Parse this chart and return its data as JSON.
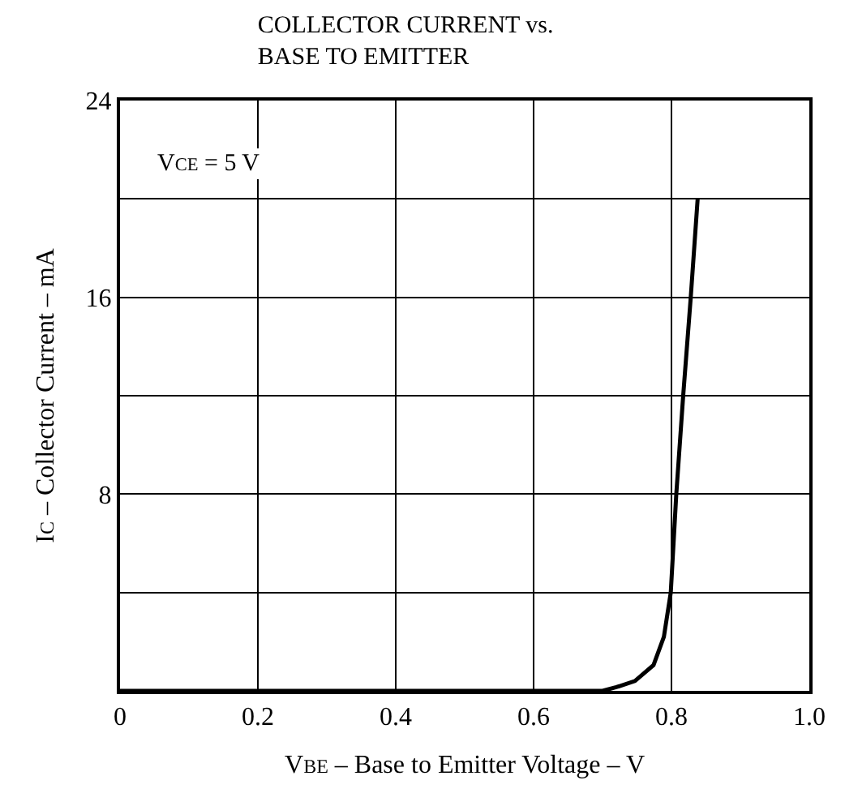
{
  "chart_data": {
    "type": "line",
    "title": "COLLECTOR CURRENT vs.\nBASE TO EMITTER",
    "xlabel": "V$_{BE}$ – Base to Emitter Voltage – V",
    "ylabel": "I$_{C}$ – Collector Current – mA",
    "annotations": [
      "V$_{CE}$ = 5 V"
    ],
    "series": [
      {
        "color": "#000000",
        "x": [
          0,
          0.7,
          0.72,
          0.747,
          0.774,
          0.789,
          0.799,
          0.807,
          0.817,
          0.828,
          0.838
        ],
        "values": [
          0,
          0,
          0.15,
          0.4,
          1.05,
          2.2,
          4,
          8,
          12,
          16,
          20
        ]
      }
    ],
    "xlim": [
      0,
      1.0
    ],
    "xticks": [
      0,
      0.2,
      0.4,
      0.6,
      0.8,
      {
        "value": 1.0,
        "label": "1.0"
      }
    ],
    "ylim": [
      0,
      24
    ],
    "yticks": [
      {
        "value": 0,
        "label": null
      },
      {
        "value": 4,
        "label": null
      },
      8,
      {
        "value": 12,
        "label": null
      },
      16,
      {
        "value": 20,
        "label": null
      },
      24
    ],
    "grid": true,
    "legend": false
  }
}
